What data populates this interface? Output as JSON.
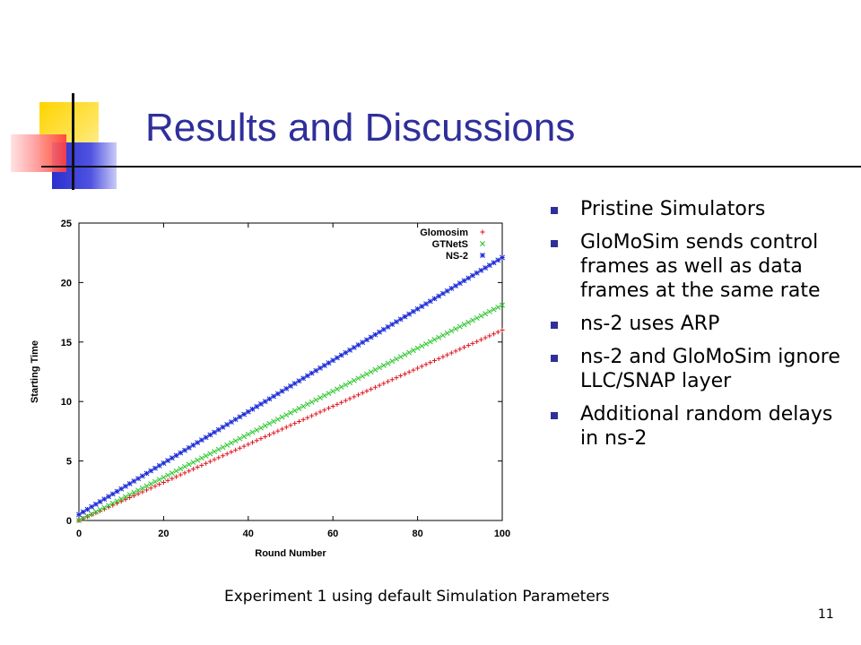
{
  "slide": {
    "title": "Results and Discussions",
    "caption": "Experiment 1 using default Simulation Parameters",
    "page_number": "11",
    "accent_color": "#2f2f9a"
  },
  "bullets": [
    "Pristine Simulators",
    "GloMoSim sends control frames as well as data frames at the same rate",
    "ns-2 uses ARP",
    "ns-2 and GloMoSim ignore LLC/SNAP layer",
    "Additional random delays in ns-2"
  ],
  "chart_data": {
    "type": "scatter",
    "title": "",
    "xlabel": "Round Number",
    "ylabel": "Starting Time",
    "xlim": [
      0,
      100
    ],
    "ylim": [
      0,
      25
    ],
    "xticks": [
      0,
      20,
      40,
      60,
      80,
      100
    ],
    "yticks": [
      0,
      5,
      10,
      15,
      20,
      25
    ],
    "grid": false,
    "legend_position": "top-right",
    "series": [
      {
        "name": "Glomosim",
        "marker": "+",
        "color": "#e0141e",
        "x_start": 0,
        "x_end": 100,
        "y_start": 0.0,
        "y_end": 16.0
      },
      {
        "name": "GTNetS",
        "marker": "x",
        "color": "#22c322",
        "x_start": 0,
        "x_end": 100,
        "y_start": 0.0,
        "y_end": 18.1
      },
      {
        "name": "NS-2",
        "marker": "*",
        "color": "#1a2ad6",
        "x_start": 0,
        "x_end": 100,
        "y_start": 0.5,
        "y_end": 22.1
      }
    ]
  }
}
